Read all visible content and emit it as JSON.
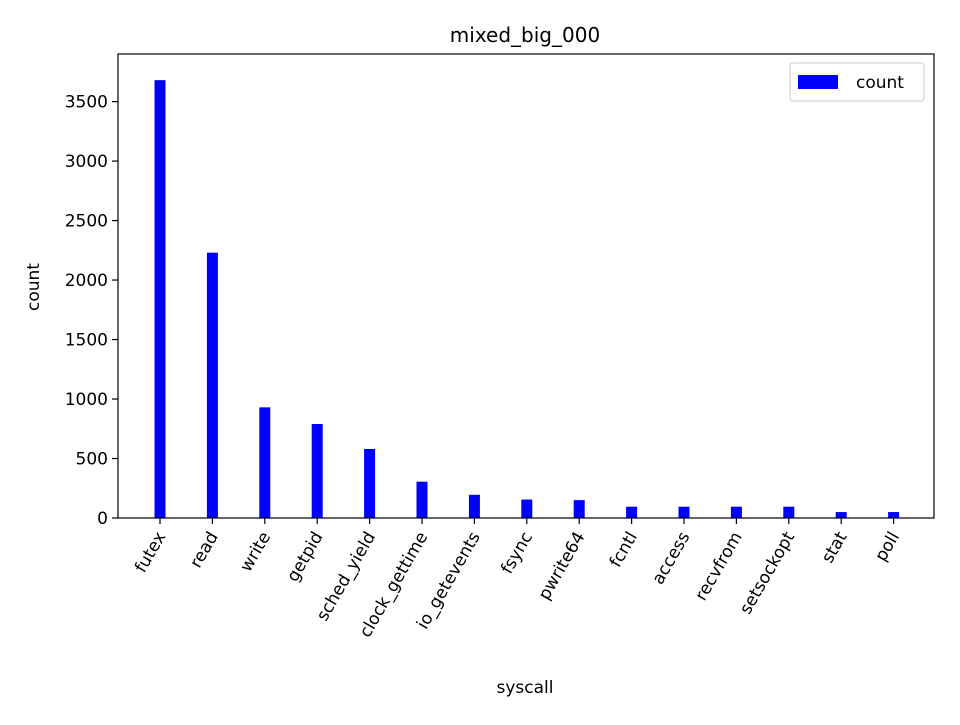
{
  "chart_data": {
    "type": "bar",
    "title": "mixed_big_000",
    "xlabel": "syscall",
    "ylabel": "count",
    "ylim": [
      0,
      3900
    ],
    "yticks": [
      0,
      500,
      1000,
      1500,
      2000,
      2500,
      3000,
      3500
    ],
    "grid": false,
    "legend": {
      "position": "top-right",
      "entries": [
        "count"
      ]
    },
    "categories": [
      "futex",
      "read",
      "write",
      "getpid",
      "sched_yield",
      "clock_gettime",
      "io_getevents",
      "fsync",
      "pwrite64",
      "fcntl",
      "access",
      "recvfrom",
      "setsockopt",
      "stat",
      "poll"
    ],
    "series": [
      {
        "name": "count",
        "color": "#0000ff",
        "values": [
          3680,
          2230,
          930,
          790,
          580,
          305,
          195,
          155,
          150,
          95,
          95,
          95,
          95,
          50,
          50
        ]
      }
    ]
  }
}
